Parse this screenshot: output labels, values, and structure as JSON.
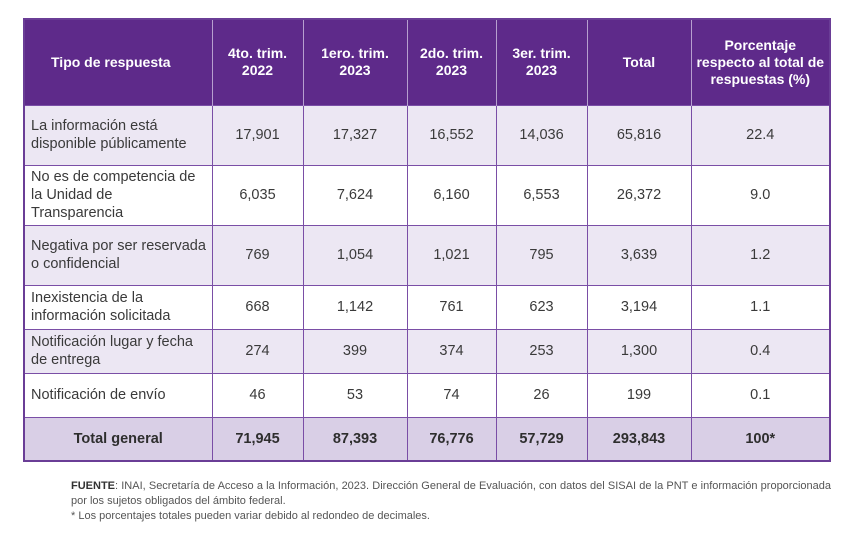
{
  "table": {
    "headers": [
      "Tipo de respuesta",
      "4to. trim. 2022",
      "1ero. trim. 2023",
      "2do. trim. 2023",
      "3er. trim. 2023",
      "Total",
      "Porcentaje respecto al total de respuestas (%)"
    ],
    "rows": [
      {
        "label": "La información está disponible públicamente",
        "values": [
          "17,901",
          "17,327",
          "16,552",
          "14,036",
          "65,816",
          "22.4"
        ]
      },
      {
        "label": "No es de competencia de la Unidad de Transparencia",
        "values": [
          "6,035",
          "7,624",
          "6,160",
          "6,553",
          "26,372",
          "9.0"
        ]
      },
      {
        "label": "Negativa por ser reservada o confidencial",
        "values": [
          "769",
          "1,054",
          "1,021",
          "795",
          "3,639",
          "1.2"
        ]
      },
      {
        "label": "Inexistencia de la información solicitada",
        "values": [
          "668",
          "1,142",
          "761",
          "623",
          "3,194",
          "1.1"
        ]
      },
      {
        "label": "Notificación lugar y fecha de entrega",
        "values": [
          "274",
          "399",
          "374",
          "253",
          "1,300",
          "0.4"
        ]
      },
      {
        "label": "Notificación de envío",
        "values": [
          "46",
          "53",
          "74",
          "26",
          "199",
          "0.1"
        ]
      }
    ],
    "total": {
      "label": "Total general",
      "values": [
        "71,945",
        "87,393",
        "76,776",
        "57,729",
        "293,843",
        "100*"
      ]
    }
  },
  "source": {
    "label": "FUENTE",
    "text": ": INAI, Secretaría de Acceso a la Información, 2023. Dirección General de Evaluación, con datos del SISAI de la PNT e información proporcionada por los sujetos obligados del ámbito federal.",
    "note": "* Los porcentajes totales pueden variar debido al redondeo de decimales."
  }
}
